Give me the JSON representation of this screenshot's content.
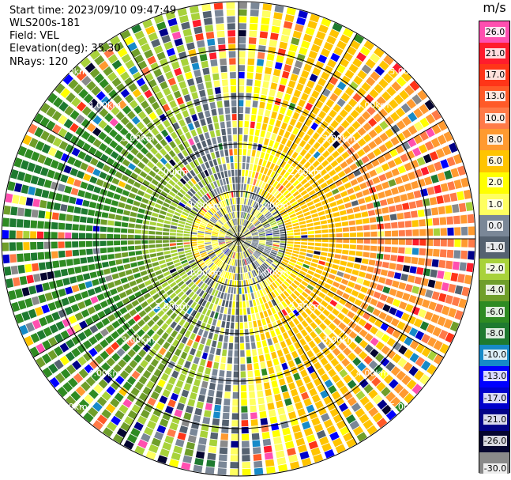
{
  "header": {
    "start_time_label": "Start time:",
    "start_time_value": "2023/09/10 09:47:49",
    "instrument": "WLS200s-181",
    "field_label": "Field:",
    "field_value": "VEL",
    "elevation_label": "Elevation(deg):",
    "elevation_value": "35.30",
    "nrays_label": "NRays:",
    "nrays_value": "120"
  },
  "colorbar": {
    "unit": "m/s",
    "ticks": [
      "26.0",
      "21.0",
      "17.0",
      "13.0",
      "10.0",
      "8.0",
      "6.0",
      "2.0",
      "1.0",
      "0.0",
      "-1.0",
      "-2.0",
      "-4.0",
      "-6.0",
      "-8.0",
      "-10.0",
      "-13.0",
      "-17.0",
      "-21.0",
      "-26.0",
      "-30.0"
    ],
    "colors": [
      "#ff4fb0",
      "#ff1c2c",
      "#ff3518",
      "#ff5a28",
      "#ff7a48",
      "#ff9a30",
      "#ffc400",
      "#ffff00",
      "#ffff60",
      "#7a8797",
      "#556270",
      "#a8d23a",
      "#6f9e2a",
      "#2e8b22",
      "#1e7a30",
      "#168ac8",
      "#0000ff",
      "#0000cc",
      "#000088",
      "#050530",
      "#8a8a8a"
    ]
  },
  "chart_data": {
    "type": "ppi",
    "title": "WLS200s-181 VEL",
    "field": "VEL",
    "units": "m/s",
    "elevation_deg": 35.3,
    "n_rays": 120,
    "range_rings_km": [
      1.0,
      2.0,
      3.0,
      4.0,
      5.0
    ],
    "max_range_km": 5.0,
    "ring_labels": [
      "1.00km",
      "2.00km",
      "3.00km",
      "4.00km",
      "5.00km"
    ],
    "color_scale_min": -30.0,
    "color_scale_max": 26.0,
    "velocity_pattern": {
      "description": "dipole radial velocity: positive (receding) to the east, negative (approaching) to the west",
      "max_abs_mps": 8.0,
      "positive_azimuth_deg": 90,
      "near_field_reversal_km": 1.0
    }
  }
}
